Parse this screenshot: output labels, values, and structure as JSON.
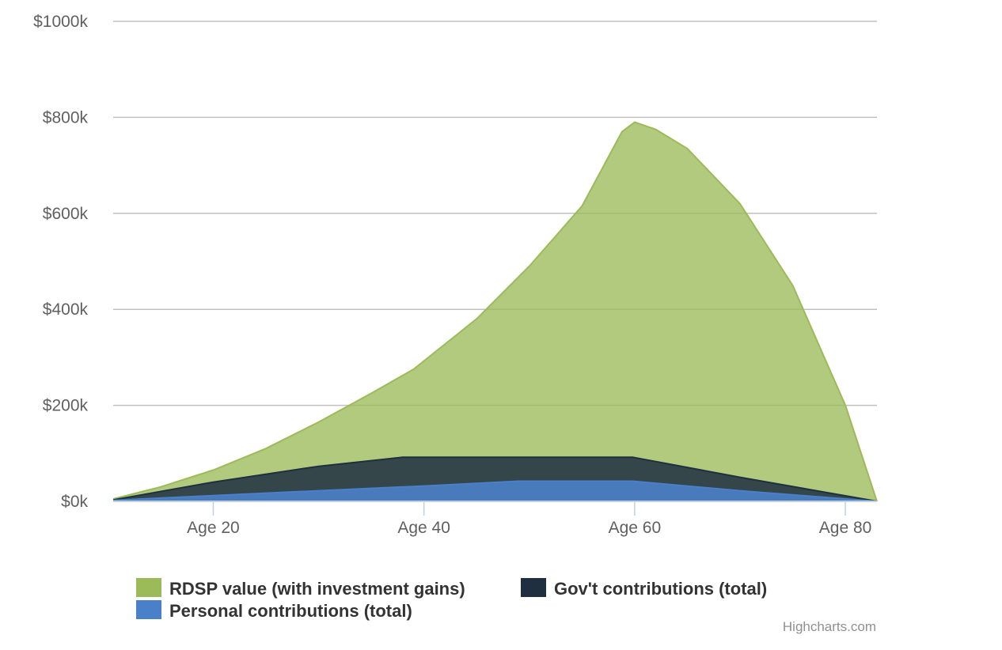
{
  "chart_data": {
    "type": "area",
    "title": "",
    "xlabel": "",
    "ylabel": "",
    "x_tick_labels": [
      "Age 20",
      "Age 40",
      "Age 60",
      "Age 80"
    ],
    "x_ticks": [
      20,
      40,
      60,
      80
    ],
    "xlim": [
      10.5,
      83
    ],
    "y_tick_labels": [
      "$0k",
      "$200k",
      "$400k",
      "$600k",
      "$800k",
      "$1000k"
    ],
    "y_ticks": [
      0,
      200000,
      400000,
      600000,
      800000,
      1000000
    ],
    "ylim": [
      0,
      1000000
    ],
    "grid": true,
    "legend_position": "bottom",
    "series": [
      {
        "name": "RDSP value (with investment gains)",
        "color": "#9bbb59",
        "fill_opacity": 0.78,
        "x": [
          10.5,
          15,
          20,
          25,
          30,
          35,
          39,
          45,
          50,
          55,
          58.8,
          60,
          62,
          65,
          70,
          75,
          80,
          83
        ],
        "values": [
          5000,
          30000,
          65000,
          110000,
          165000,
          225000,
          275000,
          380000,
          490000,
          615000,
          770000,
          790000,
          775000,
          735000,
          620000,
          450000,
          200000,
          0
        ]
      },
      {
        "name": "Gov't contributions (total)",
        "color": "#1f2f3f",
        "fill_opacity": 0.85,
        "x": [
          10.5,
          20,
          30,
          38,
          50,
          59.8,
          70,
          83
        ],
        "values": [
          3000,
          40000,
          73000,
          92000,
          92000,
          92000,
          50000,
          0
        ]
      },
      {
        "name": "Personal contributions (total)",
        "color": "#4a7fc9",
        "fill_opacity": 0.9,
        "x": [
          10.5,
          20,
          30,
          40,
          49,
          59.8,
          70,
          83
        ],
        "values": [
          2000,
          12000,
          22000,
          32000,
          42000,
          42000,
          22000,
          0
        ]
      }
    ]
  },
  "credits": "Highcharts.com"
}
